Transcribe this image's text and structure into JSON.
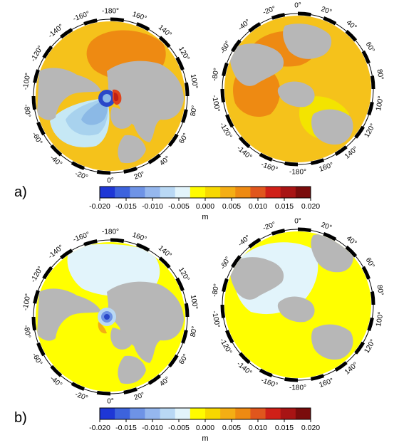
{
  "panels": [
    {
      "label": "a)",
      "maps": [
        {
          "hemisphere": "north",
          "background_color": "#f5c21b",
          "lon_labels": [
            "-180°",
            "160°",
            "140°",
            "120°",
            "100°",
            "80°",
            "60°",
            "40°",
            "20°",
            "0°",
            "-20°",
            "-40°",
            "-60°",
            "-80°",
            "-100°",
            "-120°",
            "-140°",
            "-160°"
          ],
          "anomaly_colors": [
            "#ee8a12",
            "#e07a10",
            "#c6e8f5",
            "#a8d2ee",
            "#8bb9e6",
            "#2a48c8",
            "#e0431a",
            "#c02016"
          ]
        },
        {
          "hemisphere": "south",
          "background_color": "#f5c21b",
          "lon_labels": [
            "0°",
            "20°",
            "40°",
            "60°",
            "80°",
            "100°",
            "120°",
            "140°",
            "160°",
            "-180°",
            "-160°",
            "-140°",
            "-120°",
            "-100°",
            "-80°",
            "-60°",
            "-40°",
            "-20°"
          ],
          "anomaly_colors": [
            "#ee8a12",
            "#f3e400",
            "#f7b016"
          ]
        }
      ],
      "colorbar": {
        "ticks": [
          "-0.020",
          "-0.015",
          "-0.010",
          "-0.005",
          "0.000",
          "0.005",
          "0.010",
          "0.015",
          "0.020"
        ],
        "unit": "m",
        "colors": [
          "#1e37d6",
          "#3d63dd",
          "#6e93e6",
          "#95b7ee",
          "#b9d8f4",
          "#e2f4fb",
          "#fffb00",
          "#f7d800",
          "#f4ae14",
          "#ee8a12",
          "#e0561d",
          "#d02018",
          "#a81414",
          "#7a0c0c"
        ]
      }
    },
    {
      "label": "b)",
      "maps": [
        {
          "hemisphere": "north",
          "background_color": "#ffff00",
          "lon_labels": [
            "-180°",
            "160°",
            "140°",
            "120°",
            "100°",
            "80°",
            "60°",
            "40°",
            "20°",
            "0°",
            "-20°",
            "-40°",
            "-60°",
            "-80°",
            "-100°",
            "-120°",
            "-140°",
            "-160°"
          ],
          "anomaly_colors": [
            "#e2f4fb",
            "#b9d8f4",
            "#6e93e6",
            "#2a48c8",
            "#f7d800",
            "#f4ae14"
          ]
        },
        {
          "hemisphere": "south",
          "background_color": "#ffff00",
          "lon_labels": [
            "0°",
            "20°",
            "40°",
            "60°",
            "80°",
            "100°",
            "120°",
            "140°",
            "160°",
            "-180°",
            "-160°",
            "-140°",
            "-120°",
            "-100°",
            "-80°",
            "-60°",
            "-40°",
            "-20°"
          ],
          "anomaly_colors": [
            "#e2f4fb"
          ]
        }
      ],
      "colorbar": {
        "ticks": [
          "-0.020",
          "-0.015",
          "-0.010",
          "-0.005",
          "0.000",
          "0.005",
          "0.010",
          "0.015",
          "0.020"
        ],
        "unit": "m",
        "colors": [
          "#1e37d6",
          "#3d63dd",
          "#6e93e6",
          "#95b7ee",
          "#b9d8f4",
          "#e2f4fb",
          "#fffb00",
          "#f7d800",
          "#f4ae14",
          "#ee8a12",
          "#e0561d",
          "#d02018",
          "#a81414",
          "#7a0c0c"
        ]
      }
    }
  ],
  "land_color": "#b7b7b7",
  "ring_color": "#000000"
}
